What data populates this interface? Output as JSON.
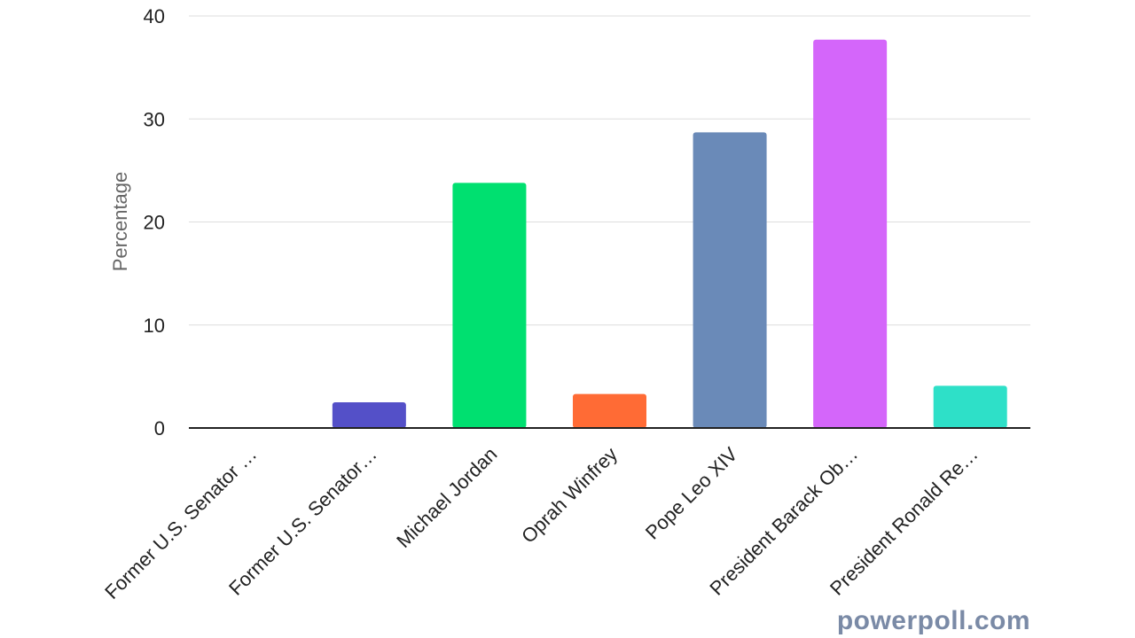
{
  "chart_data": {
    "type": "bar",
    "categories": [
      "Former U.S. Senator …",
      "Former U.S. Senator…",
      "Michael Jordan",
      "Oprah Winfrey",
      "Pope Leo XIV",
      "President Barack Ob…",
      "President Ronald Re…"
    ],
    "values": [
      0,
      2.5,
      23.8,
      3.3,
      28.7,
      37.7,
      4.1
    ],
    "colors": [
      "#4f46c8",
      "#5450c8",
      "#00e070",
      "#ff6b35",
      "#6a8ab8",
      "#d466fa",
      "#2ee0c8"
    ],
    "xlabel": "",
    "ylabel": "Percentage",
    "ylim": [
      0,
      40
    ],
    "yticks": [
      0,
      10,
      20,
      30,
      40
    ],
    "grid": true,
    "legend": "none"
  },
  "watermark": "powerpoll.com"
}
